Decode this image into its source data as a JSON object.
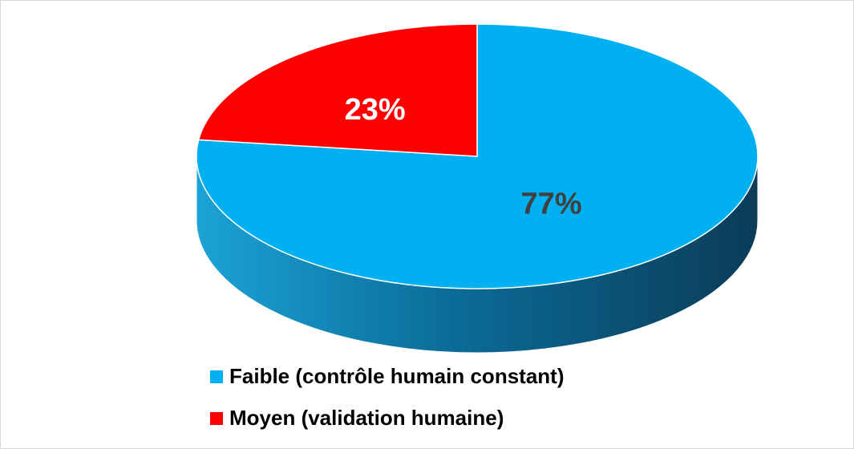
{
  "chart_data": {
    "type": "pie",
    "categories": [
      "Faible (contrôle humain constant)",
      "Moyen (validation humaine)"
    ],
    "values": [
      77,
      23
    ],
    "value_labels": [
      "77%",
      "23%"
    ],
    "colors": [
      "#00b0f0",
      "#ff0000"
    ],
    "label_colors": [
      "#404040",
      "#ffffff"
    ],
    "legend": "bottom"
  }
}
